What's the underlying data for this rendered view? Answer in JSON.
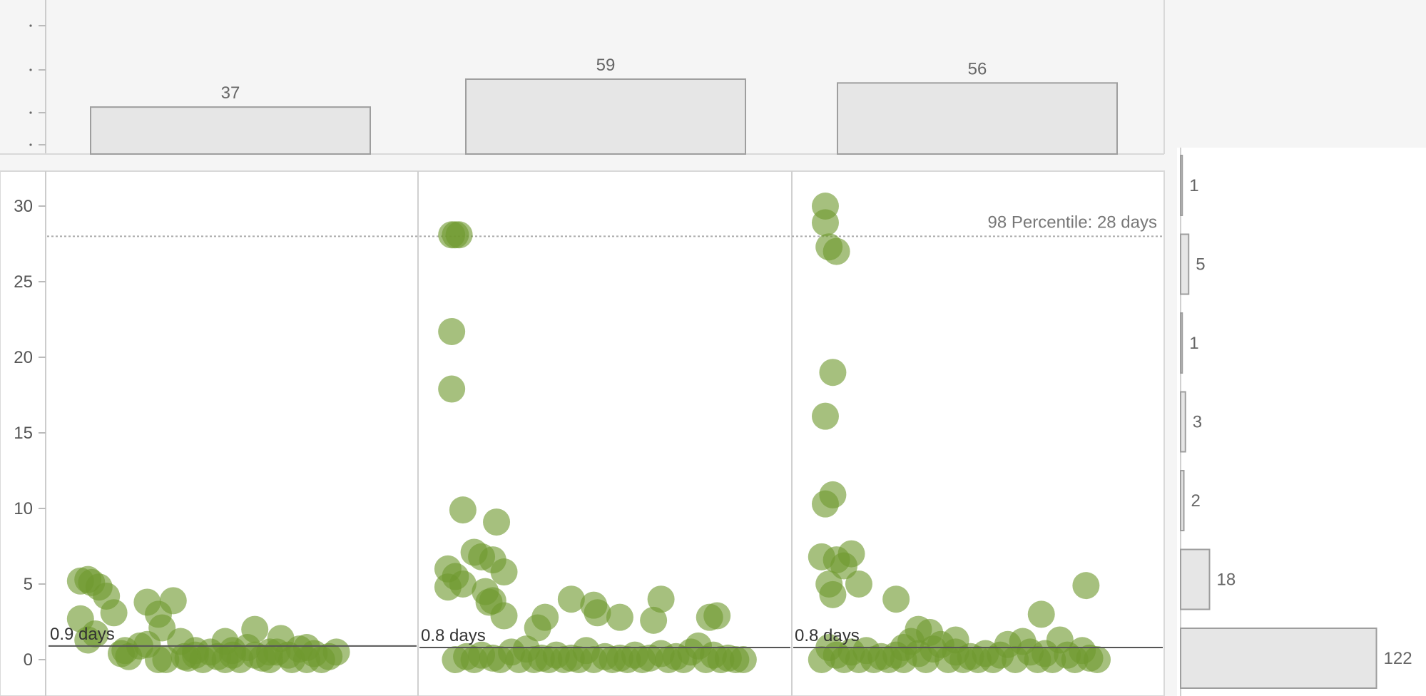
{
  "chart_data": [
    {
      "type": "bar",
      "categories": [
        "",
        "",
        ""
      ],
      "values": [
        37,
        59,
        56
      ],
      "value_labels": [
        "37",
        "59",
        "56"
      ],
      "ylim": [
        0,
        65
      ],
      "orientation": "vertical",
      "colors": {
        "fill": "#e6e6e6",
        "stroke": "#9e9e9e"
      }
    },
    {
      "type": "scatter",
      "ylim": [
        0,
        32
      ],
      "yticks": [
        0,
        5,
        10,
        15,
        20,
        25,
        30
      ],
      "ytick_labels": [
        "0",
        "5",
        "10",
        "15",
        "20",
        "25",
        "30"
      ],
      "grid": false,
      "color": "#6f9a2f",
      "reference_line": {
        "y": 28,
        "label": "98 Percentile: 28 days"
      },
      "panels": [
        {
          "median": 0.9,
          "median_label": "0.9 days",
          "points": [
            [
              0.09,
              5.2
            ],
            [
              0.11,
              5.3
            ],
            [
              0.12,
              5.1
            ],
            [
              0.14,
              4.8
            ],
            [
              0.16,
              4.2
            ],
            [
              0.18,
              3.1
            ],
            [
              0.09,
              2.7
            ],
            [
              0.11,
              1.3
            ],
            [
              0.13,
              1.7
            ],
            [
              0.2,
              0.4
            ],
            [
              0.21,
              0.6
            ],
            [
              0.22,
              0.2
            ],
            [
              0.25,
              0.9
            ],
            [
              0.27,
              1.0
            ],
            [
              0.27,
              3.8
            ],
            [
              0.3,
              3.0
            ],
            [
              0.31,
              2.1
            ],
            [
              0.34,
              3.9
            ],
            [
              0.32,
              0.0
            ],
            [
              0.36,
              1.2
            ],
            [
              0.37,
              0.2
            ],
            [
              0.38,
              0.1
            ],
            [
              0.4,
              0.3
            ],
            [
              0.42,
              0.0
            ],
            [
              0.44,
              0.5
            ],
            [
              0.46,
              0.2
            ],
            [
              0.48,
              0.0
            ],
            [
              0.48,
              1.2
            ],
            [
              0.5,
              0.6
            ],
            [
              0.52,
              0.0
            ],
            [
              0.54,
              0.8
            ],
            [
              0.56,
              0.3
            ],
            [
              0.56,
              2.0
            ],
            [
              0.58,
              0.1
            ],
            [
              0.6,
              0.0
            ],
            [
              0.62,
              0.5
            ],
            [
              0.63,
              1.4
            ],
            [
              0.65,
              0.3
            ],
            [
              0.66,
              0.0
            ],
            [
              0.68,
              0.7
            ],
            [
              0.7,
              0.0
            ],
            [
              0.72,
              0.4
            ],
            [
              0.74,
              0.0
            ],
            [
              0.76,
              0.2
            ],
            [
              0.78,
              0.5
            ],
            [
              0.4,
              0.6
            ],
            [
              0.5,
              0.3
            ],
            [
              0.6,
              0.5
            ],
            [
              0.3,
              0.0
            ],
            [
              0.7,
              0.8
            ]
          ]
        },
        {
          "median": 0.8,
          "median_label": "0.8 days",
          "points": [
            [
              0.09,
              28.1
            ],
            [
              0.1,
              28.1
            ],
            [
              0.11,
              28.1
            ],
            [
              0.09,
              21.7
            ],
            [
              0.09,
              17.9
            ],
            [
              0.12,
              9.9
            ],
            [
              0.21,
              9.1
            ],
            [
              0.15,
              7.1
            ],
            [
              0.17,
              6.8
            ],
            [
              0.2,
              6.6
            ],
            [
              0.23,
              5.8
            ],
            [
              0.08,
              6.0
            ],
            [
              0.1,
              5.5
            ],
            [
              0.12,
              5.0
            ],
            [
              0.08,
              4.8
            ],
            [
              0.18,
              4.5
            ],
            [
              0.19,
              3.8
            ],
            [
              0.2,
              3.9
            ],
            [
              0.23,
              2.9
            ],
            [
              0.32,
              2.1
            ],
            [
              0.34,
              2.8
            ],
            [
              0.41,
              4.0
            ],
            [
              0.47,
              3.6
            ],
            [
              0.48,
              3.1
            ],
            [
              0.54,
              2.8
            ],
            [
              0.63,
              2.6
            ],
            [
              0.65,
              4.0
            ],
            [
              0.78,
              2.8
            ],
            [
              0.8,
              2.9
            ],
            [
              0.1,
              0.0
            ],
            [
              0.13,
              0.2
            ],
            [
              0.15,
              0.0
            ],
            [
              0.17,
              0.3
            ],
            [
              0.2,
              0.1
            ],
            [
              0.22,
              0.0
            ],
            [
              0.25,
              0.5
            ],
            [
              0.27,
              0.0
            ],
            [
              0.29,
              0.7
            ],
            [
              0.31,
              0.0
            ],
            [
              0.33,
              0.1
            ],
            [
              0.35,
              0.0
            ],
            [
              0.37,
              0.3
            ],
            [
              0.39,
              0.0
            ],
            [
              0.41,
              0.1
            ],
            [
              0.43,
              0.0
            ],
            [
              0.45,
              0.6
            ],
            [
              0.47,
              0.0
            ],
            [
              0.5,
              0.2
            ],
            [
              0.52,
              0.0
            ],
            [
              0.54,
              0.1
            ],
            [
              0.56,
              0.0
            ],
            [
              0.58,
              0.3
            ],
            [
              0.6,
              0.0
            ],
            [
              0.62,
              0.1
            ],
            [
              0.65,
              0.4
            ],
            [
              0.67,
              0.0
            ],
            [
              0.69,
              0.2
            ],
            [
              0.71,
              0.0
            ],
            [
              0.73,
              0.5
            ],
            [
              0.75,
              0.9
            ],
            [
              0.77,
              0.0
            ],
            [
              0.79,
              0.3
            ],
            [
              0.81,
              0.0
            ],
            [
              0.83,
              0.1
            ],
            [
              0.85,
              0.0
            ],
            [
              0.87,
              0.0
            ]
          ]
        },
        {
          "median": 0.8,
          "median_label": "0.8 days",
          "points": [
            [
              0.09,
              30.0
            ],
            [
              0.09,
              28.9
            ],
            [
              0.1,
              27.3
            ],
            [
              0.12,
              27.0
            ],
            [
              0.11,
              19.0
            ],
            [
              0.09,
              16.1
            ],
            [
              0.11,
              10.9
            ],
            [
              0.09,
              10.3
            ],
            [
              0.08,
              6.8
            ],
            [
              0.12,
              6.6
            ],
            [
              0.14,
              6.2
            ],
            [
              0.16,
              7.0
            ],
            [
              0.1,
              5.0
            ],
            [
              0.11,
              4.3
            ],
            [
              0.18,
              5.0
            ],
            [
              0.28,
              4.0
            ],
            [
              0.34,
              2.0
            ],
            [
              0.37,
              1.8
            ],
            [
              0.67,
              3.0
            ],
            [
              0.79,
              4.9
            ],
            [
              0.3,
              0.8
            ],
            [
              0.32,
              1.2
            ],
            [
              0.4,
              1.0
            ],
            [
              0.44,
              1.3
            ],
            [
              0.58,
              1.0
            ],
            [
              0.62,
              1.2
            ],
            [
              0.72,
              1.3
            ],
            [
              0.08,
              0.0
            ],
            [
              0.1,
              0.8
            ],
            [
              0.12,
              0.3
            ],
            [
              0.14,
              0.0
            ],
            [
              0.16,
              0.5
            ],
            [
              0.18,
              0.0
            ],
            [
              0.2,
              0.6
            ],
            [
              0.22,
              0.0
            ],
            [
              0.24,
              0.2
            ],
            [
              0.26,
              0.0
            ],
            [
              0.28,
              0.3
            ],
            [
              0.3,
              0.0
            ],
            [
              0.34,
              0.4
            ],
            [
              0.36,
              0.0
            ],
            [
              0.38,
              0.7
            ],
            [
              0.42,
              0.0
            ],
            [
              0.44,
              0.5
            ],
            [
              0.46,
              0.0
            ],
            [
              0.48,
              0.2
            ],
            [
              0.5,
              0.0
            ],
            [
              0.52,
              0.4
            ],
            [
              0.54,
              0.0
            ],
            [
              0.56,
              0.3
            ],
            [
              0.6,
              0.0
            ],
            [
              0.64,
              0.5
            ],
            [
              0.66,
              0.0
            ],
            [
              0.68,
              0.4
            ],
            [
              0.7,
              0.0
            ],
            [
              0.74,
              0.3
            ],
            [
              0.76,
              0.0
            ],
            [
              0.78,
              0.6
            ],
            [
              0.8,
              0.1
            ],
            [
              0.82,
              0.0
            ]
          ]
        }
      ]
    },
    {
      "type": "bar",
      "orientation": "horizontal",
      "values": [
        1,
        5,
        1,
        3,
        2,
        18,
        122
      ],
      "value_labels": [
        "1",
        "5",
        "1",
        "3",
        "2",
        "18",
        "122"
      ],
      "xlim": [
        0,
        130
      ],
      "colors": {
        "fill": "#e6e6e6",
        "stroke": "#9e9e9e"
      }
    }
  ]
}
